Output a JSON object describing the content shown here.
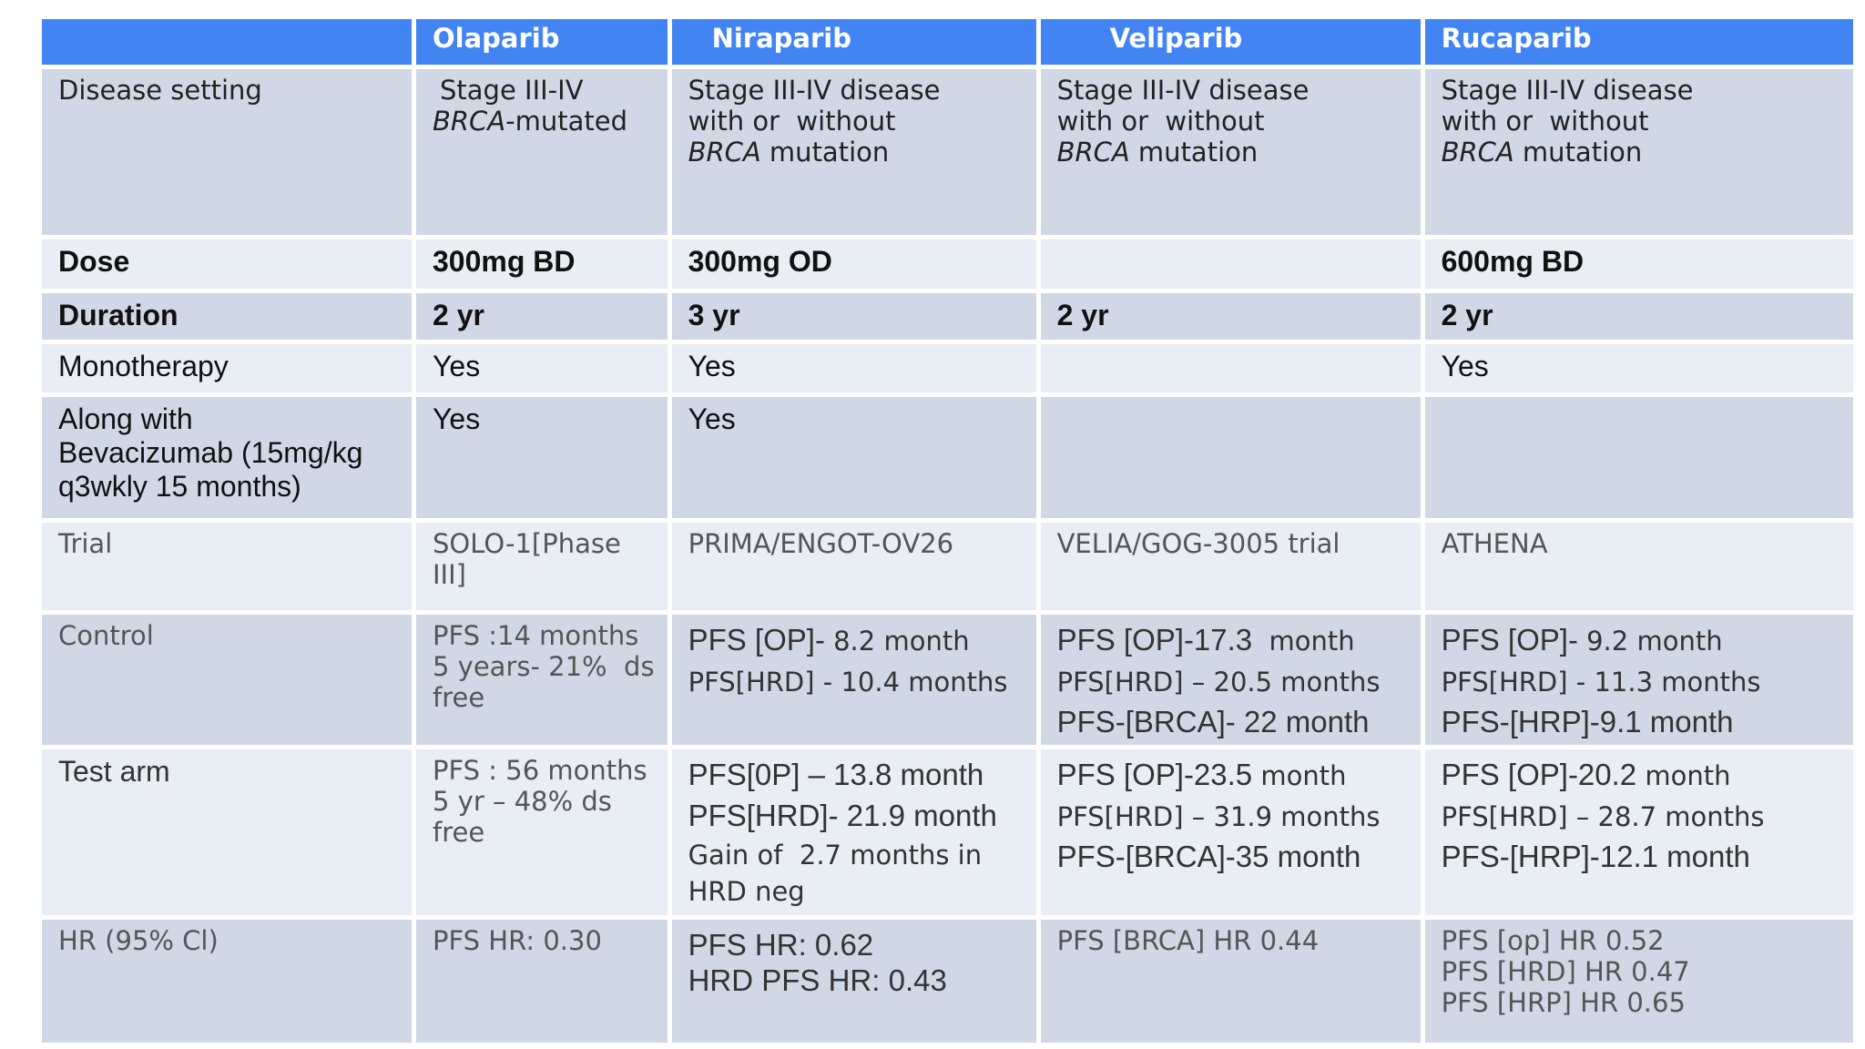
{
  "header": {
    "corner": "",
    "drugs": [
      "Olaparib",
      "Niraparib",
      "Veliparib",
      "Rucaparib"
    ]
  },
  "rows": {
    "disease_setting": {
      "label": "Disease setting",
      "olaparib": {
        "line1": "Stage III-IV",
        "line2_italic": "BRCA",
        "line2_rest": "-mutated"
      },
      "niraparib": {
        "line1": "Stage III-IV disease",
        "line2": "with or  without",
        "line3_italic": "BRCA",
        "line3_rest": " mutation"
      },
      "veliparib": {
        "line1": "Stage III-IV disease",
        "line2": "with or  without",
        "line3_italic": "BRCA",
        "line3_rest": " mutation"
      },
      "rucaparib": {
        "line1": "Stage III-IV disease",
        "line2": "with or  without",
        "line3_italic": "BRCA",
        "line3_rest": " mutation"
      }
    },
    "dose": {
      "label": "Dose",
      "olaparib": "300mg BD",
      "niraparib": "300mg OD",
      "veliparib": "",
      "rucaparib": "600mg BD"
    },
    "duration": {
      "label": "Duration",
      "olaparib": "2 yr",
      "niraparib": "3 yr",
      "veliparib": "2 yr",
      "rucaparib": "2 yr"
    },
    "monotherapy": {
      "label": "Monotherapy",
      "olaparib": "Yes",
      "niraparib": "Yes",
      "veliparib": "",
      "rucaparib": "Yes"
    },
    "bevacizumab": {
      "label_lines": [
        "Along with",
        "Bevacizumab (15mg/kg",
        "q3wkly 15 months)"
      ],
      "olaparib": "Yes",
      "niraparib": "Yes",
      "veliparib": "",
      "rucaparib": ""
    },
    "trial": {
      "label": "Trial",
      "olaparib": "SOLO-1[Phase III]",
      "niraparib": "PRIMA/ENGOT-OV26",
      "veliparib": "VELIA/GOG-3005 trial",
      "rucaparib": "ATHENA"
    },
    "control": {
      "label": "Control",
      "olaparib": [
        "PFS :14 months",
        "5 years- 21%  ds",
        "free"
      ],
      "niraparib": [
        {
          "a": "PFS [OP]- ",
          "b": "8.2 month"
        },
        {
          "a": "",
          "b": "PFS[HRD] - 10.4 months"
        }
      ],
      "veliparib": [
        {
          "a": "PFS [OP]-17.3 ",
          "b": " month"
        },
        {
          "a": "",
          "b": "PFS[HRD] – 20.5 months"
        },
        {
          "a": "PFS-[BRCA]- 22 month",
          "b": ""
        }
      ],
      "rucaparib": [
        {
          "a": "PFS [OP]- ",
          "b": "9.2 month"
        },
        {
          "a": "",
          "b": "PFS[HRD] - 11.3 months"
        },
        {
          "a": "PFS-[HRP]-9.1 month",
          "b": ""
        }
      ]
    },
    "test_arm": {
      "label": "Test arm",
      "olaparib": [
        "PFS : 56 months",
        "5 yr – 48% ds",
        "free"
      ],
      "niraparib": [
        {
          "a": "PFS[0P] – 13.8 month",
          "b": ""
        },
        {
          "a": "PFS[HRD]- 21.9 month",
          "b": ""
        },
        {
          "a": "",
          "b": "Gain of  2.7 months in"
        },
        {
          "a": "",
          "b": "HRD neg"
        }
      ],
      "veliparib": [
        {
          "a": "PFS [OP]-23.5 ",
          "b": "month"
        },
        {
          "a": "",
          "b": "PFS[HRD] – 31.9 months"
        },
        {
          "a": "PFS-[BRCA]-35 month",
          "b": ""
        }
      ],
      "rucaparib": [
        {
          "a": "PFS [OP]-20.2 ",
          "b": "month"
        },
        {
          "a": "",
          "b": "PFS[HRD] – 28.7 months"
        },
        {
          "a": "PFS-[HRP]-12.1 month",
          "b": ""
        }
      ]
    },
    "hr": {
      "label": "HR (95% Cl)",
      "olaparib": "PFS HR: 0.30",
      "niraparib": [
        "PFS HR: 0.62",
        "HRD PFS HR: 0.43"
      ],
      "veliparib": "PFS [BRCA] HR 0.44",
      "rucaparib": [
        "PFS [op] HR 0.52",
        "PFS [HRD] HR 0.47",
        "PFS [HRP] HR 0.65"
      ]
    }
  }
}
